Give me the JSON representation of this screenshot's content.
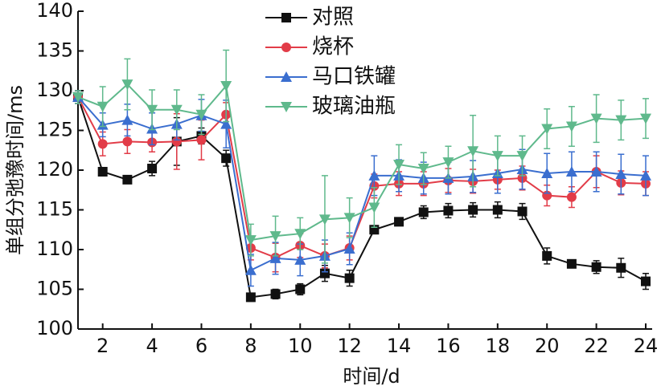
{
  "chart_data": {
    "type": "line",
    "xlabel": "时间/d",
    "ylabel": "单组分弛豫时间/ms",
    "x": [
      1,
      2,
      3,
      4,
      5,
      6,
      7,
      8,
      9,
      10,
      11,
      12,
      13,
      14,
      15,
      16,
      17,
      18,
      19,
      20,
      21,
      22,
      23,
      24
    ],
    "xlim": [
      1,
      24
    ],
    "xticks": [
      2,
      4,
      6,
      8,
      10,
      12,
      14,
      16,
      18,
      20,
      22,
      24
    ],
    "ylim": [
      100,
      140
    ],
    "yticks": [
      100,
      105,
      110,
      115,
      120,
      125,
      130,
      135,
      140
    ],
    "legend": "upper center",
    "series": [
      {
        "name": "对照",
        "color": "#111111",
        "marker": "square",
        "values": [
          129.2,
          119.8,
          118.8,
          120.2,
          123.6,
          124.3,
          121.5,
          104,
          104.4,
          105,
          107,
          106.4,
          112.5,
          113.5,
          114.7,
          114.9,
          115,
          115,
          114.8,
          109.2,
          108.2,
          107.8,
          107.7,
          106
        ],
        "errors": [
          0.8,
          0.5,
          0.4,
          0.9,
          3,
          1,
          1,
          0.5,
          0.6,
          0.7,
          1,
          1,
          0.5,
          0.4,
          0.8,
          0.9,
          0.9,
          1,
          1,
          1,
          0.5,
          0.8,
          1.2,
          1
        ]
      },
      {
        "name": "烧杯",
        "color": "#e23c48",
        "marker": "circle",
        "values": [
          129.2,
          123.3,
          123.6,
          123.5,
          123.6,
          123.8,
          127,
          110.2,
          109,
          110.5,
          109.2,
          110.2,
          118,
          118.3,
          118.3,
          118.7,
          118.6,
          118.8,
          119,
          116.8,
          116.6,
          119.8,
          118.4,
          118.3
        ],
        "errors": [
          0.8,
          1.5,
          1.5,
          1.2,
          3.5,
          2.5,
          1.5,
          1.5,
          1.8,
          1.5,
          1.5,
          1.5,
          1.5,
          1.5,
          1.5,
          1.5,
          1.5,
          1.2,
          1.5,
          1.3,
          1.3,
          2,
          1.5,
          1.5
        ]
      },
      {
        "name": "马口铁罐",
        "color": "#3a6ecf",
        "marker": "triangle-up",
        "values": [
          129.2,
          125.7,
          126.3,
          125.2,
          125.8,
          126.9,
          125.8,
          107.4,
          108.9,
          108.7,
          109.2,
          110.1,
          119.3,
          119.3,
          119,
          119,
          119.2,
          119.6,
          120.1,
          119.6,
          119.8,
          119.8,
          119.5,
          119.3
        ],
        "errors": [
          0.8,
          1.5,
          2,
          2,
          2,
          2,
          3,
          2,
          2,
          2,
          2,
          2,
          2.5,
          2,
          2,
          2,
          2,
          2.5,
          2.5,
          2.5,
          2.5,
          2.5,
          2.5,
          2.5
        ]
      },
      {
        "name": "玻璃油瓶",
        "color": "#5fb98c",
        "marker": "triangle-down",
        "values": [
          129.2,
          128,
          130.8,
          127.6,
          127.6,
          127,
          130.6,
          111.2,
          111.7,
          112,
          113.8,
          114,
          115.3,
          120.7,
          120.2,
          121,
          122.4,
          121.8,
          121.8,
          125.2,
          125.5,
          126.5,
          126.3,
          126.5
        ],
        "errors": [
          0.8,
          2.5,
          3.2,
          2.5,
          2.5,
          2.5,
          4.5,
          2,
          2.5,
          2,
          5.5,
          2.5,
          2.5,
          2.5,
          2,
          2,
          4.5,
          2.5,
          2.5,
          2.5,
          2.5,
          3,
          2.5,
          2.5
        ]
      }
    ]
  }
}
